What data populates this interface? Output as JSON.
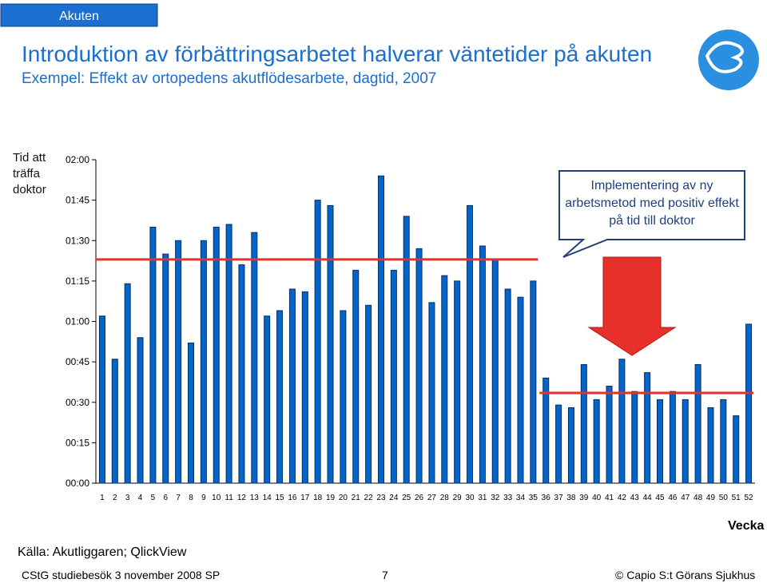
{
  "header": {
    "tab": "Akuten",
    "title": "Introduktion av förbättringsarbetet halverar väntetider på akuten",
    "subtitle": "Exempel: Effekt av ortopedens akutflödesarbete, dagtid, 2007"
  },
  "chart_data": {
    "type": "bar",
    "y_label": "Tid att träffa doktor",
    "x_label": "Vecka",
    "categories": [
      "1",
      "2",
      "3",
      "4",
      "5",
      "6",
      "7",
      "8",
      "9",
      "10",
      "11",
      "12",
      "13",
      "14",
      "15",
      "16",
      "17",
      "18",
      "19",
      "20",
      "21",
      "22",
      "23",
      "24",
      "25",
      "26",
      "27",
      "28",
      "29",
      "30",
      "31",
      "32",
      "33",
      "34",
      "35",
      "36",
      "37",
      "38",
      "39",
      "40",
      "41",
      "42",
      "43",
      "44",
      "45",
      "46",
      "47",
      "48",
      "49",
      "50",
      "51",
      "52"
    ],
    "values": [
      62,
      46,
      74,
      54,
      95,
      85,
      90,
      52,
      90,
      95,
      96,
      81,
      93,
      62,
      64,
      72,
      71,
      105,
      103,
      64,
      79,
      66,
      114,
      79,
      99,
      87,
      67,
      77,
      75,
      103,
      88,
      83,
      72,
      69,
      75,
      39,
      29,
      28,
      44,
      31,
      36,
      46,
      34,
      41,
      31,
      34,
      31,
      44,
      28,
      31,
      25,
      59
    ],
    "color": "#0066cc",
    "ylim": [
      0,
      120
    ],
    "yticks": [
      {
        "value": 0,
        "label": "00:00"
      },
      {
        "value": 15,
        "label": "00:15"
      },
      {
        "value": 30,
        "label": "00:30"
      },
      {
        "value": 45,
        "label": "00:45"
      },
      {
        "value": 60,
        "label": "01:00"
      },
      {
        "value": 75,
        "label": "01:15"
      },
      {
        "value": 90,
        "label": "01:30"
      },
      {
        "value": 105,
        "label": "01:45"
      },
      {
        "value": 120,
        "label": "02:00"
      }
    ],
    "reference_lines": [
      {
        "value": 83,
        "start": "1",
        "end": "35",
        "color": "#e8302a"
      },
      {
        "value": 33.5,
        "start": "36",
        "end": "52",
        "color": "#e8302a"
      }
    ],
    "annotation": "Implementering av ny arbetsmetod med positiv effekt på tid till doktor"
  },
  "footer": {
    "source": "Källa: Akutliggaren; QlickView",
    "event": "CStG studiebesök 3 november 2008 SP",
    "page": "7",
    "copyright": "© Capio S:t Görans Sjukhus"
  }
}
